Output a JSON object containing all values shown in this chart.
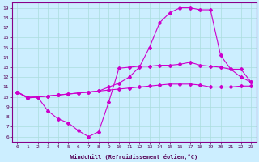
{
  "xlabel": "Windchill (Refroidissement éolien,°C)",
  "xlim": [
    -0.5,
    23.5
  ],
  "ylim": [
    5.5,
    19.5
  ],
  "xticks": [
    0,
    1,
    2,
    3,
    4,
    5,
    6,
    7,
    8,
    9,
    10,
    11,
    12,
    13,
    14,
    15,
    16,
    17,
    18,
    19,
    20,
    21,
    22,
    23
  ],
  "yticks": [
    6,
    7,
    8,
    9,
    10,
    11,
    12,
    13,
    14,
    15,
    16,
    17,
    18,
    19
  ],
  "bg_color": "#cceeff",
  "line_color": "#cc00cc",
  "grid_color": "#aadddd",
  "line1_x": [
    0,
    1,
    2,
    3,
    4,
    5,
    6,
    7,
    8,
    9,
    10,
    11,
    12,
    13,
    14,
    15,
    16,
    17,
    18,
    19,
    20,
    21,
    22,
    23
  ],
  "line1_y": [
    10.5,
    9.9,
    10.0,
    8.6,
    7.8,
    7.4,
    6.6,
    6.0,
    6.5,
    9.5,
    12.9,
    13.0,
    13.1,
    13.1,
    13.2,
    13.2,
    13.3,
    13.5,
    13.2,
    13.1,
    13.0,
    12.8,
    12.8,
    11.5
  ],
  "line2_x": [
    0,
    1,
    2,
    3,
    4,
    5,
    6,
    7,
    8,
    9,
    10,
    11,
    12,
    13,
    14,
    15,
    16,
    17,
    18,
    19,
    20,
    21,
    22,
    23
  ],
  "line2_y": [
    10.5,
    10.0,
    10.0,
    10.1,
    10.2,
    10.3,
    10.4,
    10.5,
    10.6,
    10.7,
    10.8,
    10.9,
    11.0,
    11.1,
    11.2,
    11.3,
    11.3,
    11.3,
    11.2,
    11.0,
    11.0,
    11.0,
    11.1,
    11.1
  ],
  "line3_x": [
    0,
    1,
    2,
    3,
    4,
    5,
    6,
    7,
    8,
    9,
    10,
    11,
    12,
    13,
    14,
    15,
    16,
    17,
    18,
    19,
    20,
    21,
    22,
    23
  ],
  "line3_y": [
    10.5,
    9.9,
    10.0,
    10.1,
    10.2,
    10.3,
    10.4,
    10.5,
    10.6,
    11.0,
    11.4,
    12.0,
    13.0,
    15.0,
    17.5,
    18.5,
    19.0,
    19.0,
    18.8,
    18.8,
    14.2,
    12.8,
    12.0,
    11.5
  ]
}
